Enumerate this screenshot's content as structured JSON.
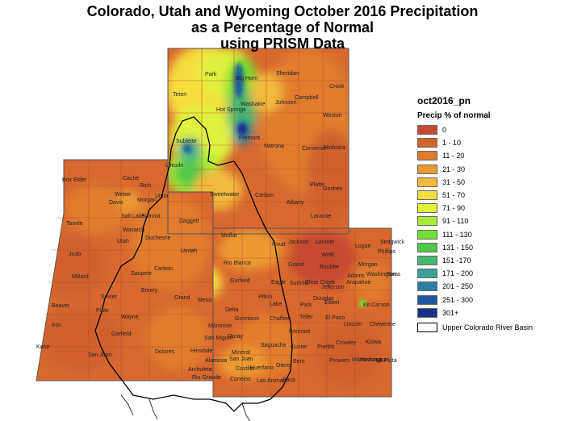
{
  "title": {
    "line1": "Colorado, Utah and Wyoming October 2016 Precipitation",
    "line2": "as a Percentage of Normal",
    "line3": "using PRISM Data"
  },
  "legend": {
    "title": "oct2016_pn",
    "subtitle": "Precip % of normal",
    "classes": [
      {
        "label": "0",
        "color": "#c84a32"
      },
      {
        "label": "1 - 10",
        "color": "#d2612d"
      },
      {
        "label": "11 - 20",
        "color": "#e07b2e"
      },
      {
        "label": "21 - 30",
        "color": "#eb9a33"
      },
      {
        "label": "31 - 50",
        "color": "#f2ba3c"
      },
      {
        "label": "51 - 70",
        "color": "#f6dd3e"
      },
      {
        "label": "71 - 90",
        "color": "#dff23c"
      },
      {
        "label": "91 - 110",
        "color": "#a9ec34"
      },
      {
        "label": "111 - 130",
        "color": "#74dd33"
      },
      {
        "label": "131 - 150",
        "color": "#52c84a"
      },
      {
        "label": "151 -170",
        "color": "#44b771"
      },
      {
        "label": "171 - 200",
        "color": "#3ba595"
      },
      {
        "label": "201 - 250",
        "color": "#2d80a4"
      },
      {
        "label": "251 - 300",
        "color": "#1f589f"
      },
      {
        "label": "301+",
        "color": "#1a2f8a"
      }
    ],
    "basin_label": "Upper Colorado River Basin"
  },
  "counties": [
    "Park",
    "Big Horn",
    "Sheridan",
    "Crook",
    "Teton",
    "Washakie",
    "Johnson",
    "Campbell",
    "Hot Springs",
    "Weston",
    "Fremont",
    "Sublette",
    "Natrona",
    "Converse",
    "Niobrara",
    "Lincoln",
    "Sweetwater",
    "Carbon",
    "Albany",
    "Platte",
    "Goshen",
    "Laramie",
    "Box Elder",
    "Cache",
    "Rich",
    "Weber",
    "Davis",
    "Morgan",
    "Uinta",
    "Tooele",
    "Salt Lake",
    "Summit",
    "Daggett",
    "Wasatch",
    "Utah",
    "Duchesne",
    "Moffat",
    "Routt",
    "Jackson",
    "Larimer",
    "Logan",
    "Sedgwick",
    "Phillips",
    "Weld",
    "Morgan",
    "Juab",
    "Uintah",
    "Carbon",
    "Rio Blanco",
    "Grand",
    "Boulder",
    "Millard",
    "Sanpete",
    "Garfield",
    "Eagle",
    "Summit",
    "Clear Creek",
    "Jefferson",
    "Arapahoe",
    "Adams",
    "Washington",
    "Yuma",
    "Emery",
    "Grand",
    "Mesa",
    "Pitkin",
    "Lake",
    "Park",
    "Douglas",
    "Elbert",
    "Kit Carson",
    "Sevier",
    "Delta",
    "Beaver",
    "Piute",
    "Wayne",
    "Gunnison",
    "Chaffee",
    "Teller",
    "El Paso",
    "Lincoln",
    "Cheyenne",
    "Iron",
    "Garfield",
    "Montrose",
    "Fremont",
    "Kiowa",
    "Ouray",
    "San Miguel",
    "Saguache",
    "Custer",
    "Pueblo",
    "Crowley",
    "Washington",
    "Kane",
    "San Juan",
    "Dolores",
    "Hinsdale",
    "Mineral",
    "San Juan",
    "Alamosa",
    "Huerfano",
    "Otero",
    "Bent",
    "Prowers",
    "Montezuma",
    "La Plata",
    "Archuleta",
    "Rio Grande",
    "Conejos",
    "Costilla",
    "Las Animas",
    "Baca"
  ]
}
